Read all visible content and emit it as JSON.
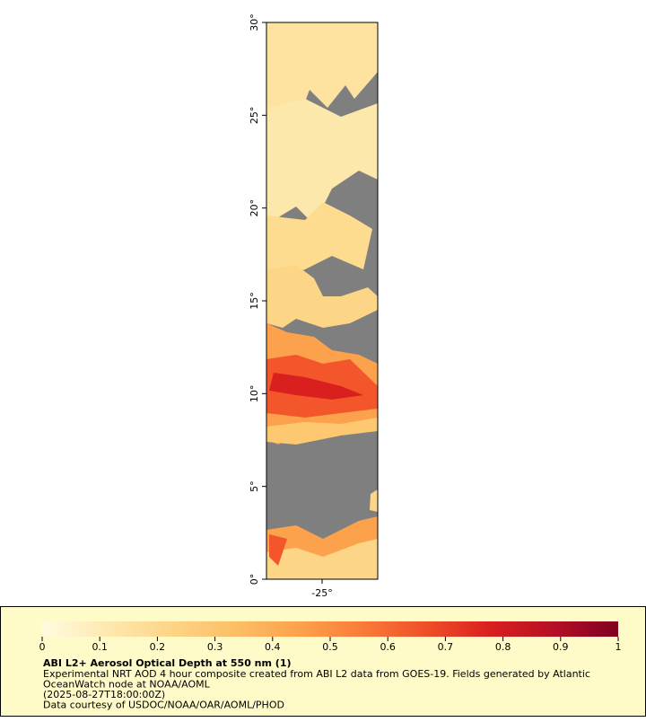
{
  "map": {
    "lat_axis": {
      "lim": [
        0,
        30
      ],
      "ticks": [
        {
          "value": 0,
          "label": "0°"
        },
        {
          "value": 5,
          "label": "5°"
        },
        {
          "value": 10,
          "label": "10°"
        },
        {
          "value": 15,
          "label": "15°"
        },
        {
          "value": 20,
          "label": "20°"
        },
        {
          "value": 25,
          "label": "25°"
        },
        {
          "value": 30,
          "label": "30°"
        }
      ]
    },
    "lon_axis": {
      "lim": [
        -28,
        -22
      ],
      "ticks": [
        {
          "value": -25,
          "label": "-25°"
        }
      ]
    }
  },
  "legend": {
    "colorbar": {
      "lim": [
        0,
        1
      ],
      "ticks": [
        0,
        0.1,
        0.2,
        0.3,
        0.4,
        0.5,
        0.6,
        0.7,
        0.8,
        0.9,
        1
      ],
      "colors": [
        "#fffbe0",
        "#fee9b0",
        "#fdd587",
        "#fcbf66",
        "#fca24c",
        "#f97c38",
        "#ef4f28",
        "#d9201f",
        "#b50f25",
        "#800020"
      ]
    },
    "title": "ABI L2+ Aerosol Optical Depth at 550 nm (1)",
    "lines": [
      "Experimental NRT AOD 4 hour composite created from ABI L2 data from GOES-19. Fields generated by Atlantic",
      "OceanWatch node at NOAA/AOML",
      "(2025-08-27T18:00:00Z)",
      "Data courtesy of USDOC/NOAA/OAR/AOML/PHOD"
    ]
  }
}
